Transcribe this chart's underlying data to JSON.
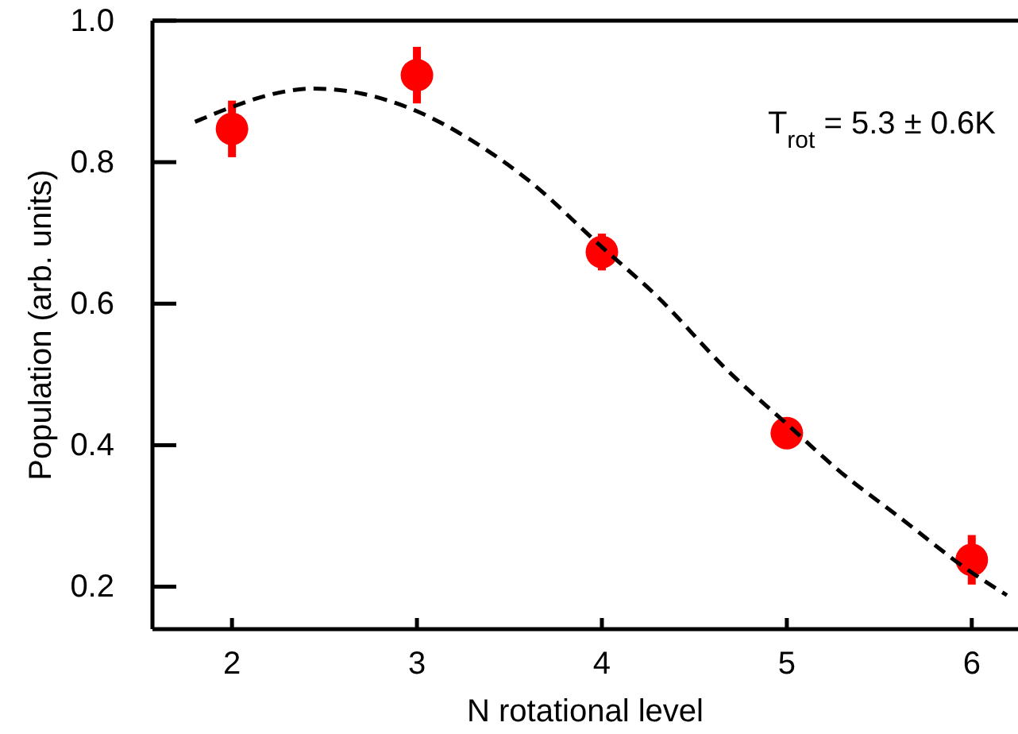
{
  "chart_data": {
    "type": "scatter",
    "xlabel": "N rotational level",
    "ylabel": "Population (arb. units)",
    "xlim": [
      1.57,
      6.25
    ],
    "ylim": [
      0.14,
      1.0
    ],
    "xticks": [
      2,
      3,
      4,
      5,
      6
    ],
    "yticks": [
      {
        "value": 0.2,
        "label": "0.2"
      },
      {
        "value": 0.4,
        "label": "0.4"
      },
      {
        "value": 0.6,
        "label": "0.6"
      },
      {
        "value": 0.8,
        "label": "0.8"
      },
      {
        "value": 1.0,
        "label": "1.0"
      }
    ],
    "grid": false,
    "marker": "circle",
    "series": [
      {
        "color": "#ff0000",
        "x": [
          2,
          3,
          4,
          5,
          6
        ],
        "values": [
          0.847,
          0.923,
          0.673,
          0.417,
          0.238
        ],
        "errors": [
          0.04,
          0.04,
          0.026,
          0.022,
          0.035
        ]
      },
      {
        "type": "line",
        "color": "#000000",
        "line_style": "dashed",
        "marker": "none",
        "x": [
          1.8,
          2.0,
          2.2,
          2.44,
          2.7,
          3.0,
          3.3,
          3.6,
          4.0,
          4.3,
          4.67,
          5.0,
          5.3,
          5.6,
          6.0,
          6.19
        ],
        "values": [
          0.857,
          0.878,
          0.895,
          0.904,
          0.897,
          0.872,
          0.83,
          0.775,
          0.68,
          0.61,
          0.508,
          0.43,
          0.36,
          0.3,
          0.22,
          0.188
        ]
      }
    ],
    "annotations": [
      "T$_{rot}$ = 5.3 ± 0.6K"
    ]
  }
}
